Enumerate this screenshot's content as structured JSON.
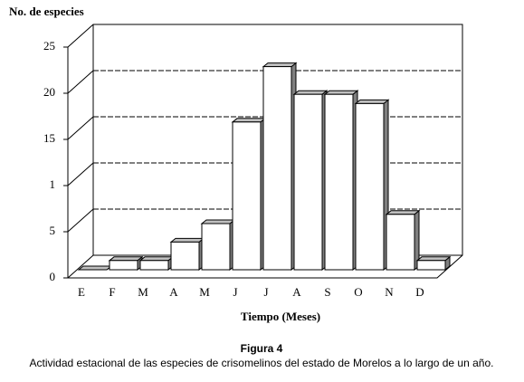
{
  "chart_data": {
    "type": "bar",
    "y_label": "No. de especies",
    "x_label": "Tiempo (Meses)",
    "caption_title": "Figura 4",
    "caption": "Actividad estacional de las especies de crisomelinos del estado de Morelos a lo largo de un año.",
    "categories": [
      "E",
      "F",
      "M",
      "A",
      "M",
      "J",
      "J",
      "A",
      "S",
      "O",
      "N",
      "D"
    ],
    "values": [
      0,
      1,
      1,
      3,
      5,
      16,
      22,
      19,
      19,
      18,
      6,
      1
    ],
    "color": "#ffffff",
    "ylim": [
      0,
      25
    ],
    "yticks": [
      0,
      5,
      {
        "value": 10,
        "label": "1"
      },
      15,
      20,
      25
    ],
    "grid": true
  }
}
